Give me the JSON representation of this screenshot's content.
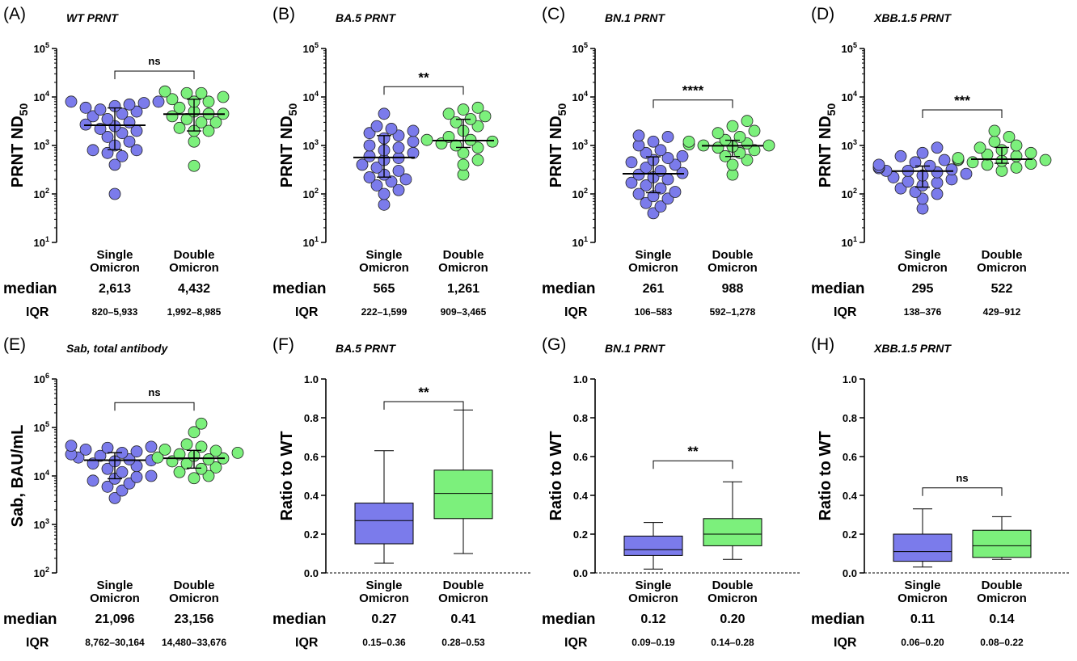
{
  "colors": {
    "single": "#7B7BEB",
    "double": "#7CF07C",
    "axis": "#000000"
  },
  "labels": {
    "median": "median",
    "iqr": "IQR"
  },
  "chart_data": [
    {
      "panel": "(A)",
      "title": "WT PRNT",
      "type": "scatter",
      "scale": "log",
      "ylabel": "PRNT ND",
      "ylabel_sub": "50",
      "ylim_exp": [
        1,
        5
      ],
      "y_ticks": [
        "10^1",
        "10^2",
        "10^3",
        "10^4",
        "10^5"
      ],
      "categories": [
        [
          "Single",
          "Omicron"
        ],
        [
          "Double",
          "Omicron"
        ]
      ],
      "significance": "ns",
      "series": [
        {
          "values": [
            100,
            400,
            600,
            700,
            800,
            800,
            1000,
            1200,
            1500,
            1800,
            2000,
            2200,
            2500,
            2700,
            3000,
            3500,
            4000,
            4500,
            5000,
            5500,
            6000,
            6500,
            7000,
            7500,
            8000,
            8000
          ],
          "median": 2613,
          "q1": 820,
          "q3": 5933
        },
        {
          "values": [
            380,
            1200,
            2000,
            2000,
            2300,
            3000,
            3000,
            3500,
            4000,
            4500,
            4500,
            5000,
            6000,
            8000,
            8000,
            9000,
            10000,
            12000,
            12000,
            13000
          ],
          "median": 4432,
          "q1": 1992,
          "q3": 8985
        }
      ],
      "medians": [
        "2,613",
        "4,432"
      ],
      "iqr": [
        "820–5,933",
        "1,992–8,985"
      ]
    },
    {
      "panel": "(B)",
      "title": "BA.5 PRNT",
      "type": "scatter",
      "scale": "log",
      "ylabel": "PRNT ND",
      "ylabel_sub": "50",
      "ylim_exp": [
        1,
        5
      ],
      "y_ticks": [
        "10^1",
        "10^2",
        "10^3",
        "10^4",
        "10^5"
      ],
      "categories": [
        [
          "Single",
          "Omicron"
        ],
        [
          "Double",
          "Omicron"
        ]
      ],
      "significance": "**",
      "series": [
        {
          "values": [
            60,
            100,
            120,
            150,
            180,
            200,
            220,
            250,
            300,
            350,
            400,
            500,
            550,
            600,
            700,
            800,
            900,
            1000,
            1200,
            1400,
            1600,
            1800,
            2000,
            2200,
            2500,
            4500
          ],
          "median": 565,
          "q1": 222,
          "q3": 1599
        },
        {
          "values": [
            250,
            400,
            500,
            700,
            900,
            1000,
            1100,
            1200,
            1300,
            1300,
            1500,
            2000,
            2500,
            3000,
            3500,
            4000,
            4500,
            5500,
            6000
          ],
          "median": 1261,
          "q1": 909,
          "q3": 3465
        }
      ],
      "medians": [
        "565",
        "1,261"
      ],
      "iqr": [
        "222–1,599",
        "909–3,465"
      ]
    },
    {
      "panel": "(C)",
      "title": "BN.1 PRNT",
      "type": "scatter",
      "scale": "log",
      "ylabel": "PRNT ND",
      "ylabel_sub": "50",
      "ylim_exp": [
        1,
        5
      ],
      "y_ticks": [
        "10^1",
        "10^2",
        "10^3",
        "10^4",
        "10^5"
      ],
      "categories": [
        [
          "Single",
          "Omicron"
        ],
        [
          "Double",
          "Omicron"
        ]
      ],
      "significance": "****",
      "series": [
        {
          "values": [
            40,
            55,
            65,
            80,
            90,
            100,
            110,
            130,
            150,
            170,
            200,
            220,
            250,
            270,
            300,
            350,
            400,
            450,
            500,
            550,
            600,
            700,
            800,
            1000,
            1200,
            1500,
            1600
          ],
          "median": 261,
          "q1": 106,
          "q3": 583
        },
        {
          "values": [
            250,
            400,
            500,
            600,
            700,
            800,
            900,
            950,
            1000,
            1000,
            1050,
            1100,
            1200,
            1300,
            1500,
            1800,
            2000,
            2500,
            3200
          ],
          "median": 988,
          "q1": 592,
          "q3": 1278
        }
      ],
      "medians": [
        "261",
        "988"
      ],
      "iqr": [
        "106–583",
        "592–1,278"
      ]
    },
    {
      "panel": "(D)",
      "title": "XBB.1.5 PRNT",
      "type": "scatter",
      "scale": "log",
      "ylabel": "PRNT ND",
      "ylabel_sub": "50",
      "ylim_exp": [
        1,
        5
      ],
      "y_ticks": [
        "10^1",
        "10^2",
        "10^3",
        "10^4",
        "10^5"
      ],
      "categories": [
        [
          "Single",
          "Omicron"
        ],
        [
          "Double",
          "Omicron"
        ]
      ],
      "significance": "***",
      "series": [
        {
          "values": [
            50,
            80,
            100,
            110,
            130,
            150,
            170,
            180,
            200,
            220,
            240,
            260,
            280,
            300,
            300,
            320,
            340,
            360,
            380,
            400,
            450,
            500,
            600,
            700,
            900
          ],
          "median": 295,
          "q1": 138,
          "q3": 376
        },
        {
          "values": [
            300,
            350,
            400,
            420,
            450,
            480,
            500,
            500,
            520,
            550,
            600,
            650,
            700,
            800,
            900,
            1000,
            1200,
            1500,
            2000
          ],
          "median": 522,
          "q1": 429,
          "q3": 912
        }
      ],
      "medians": [
        "295",
        "522"
      ],
      "iqr": [
        "138–376",
        "429–912"
      ]
    },
    {
      "panel": "(E)",
      "title": "Sab, total antibody",
      "type": "scatter",
      "scale": "log",
      "ylabel": "Sab, BAU/mL",
      "ylabel_sub": "",
      "ylim_exp": [
        2,
        6
      ],
      "y_ticks": [
        "10^2",
        "10^3",
        "10^4",
        "10^5",
        "10^6"
      ],
      "categories": [
        [
          "Single",
          "Omicron"
        ],
        [
          "Double",
          "Omicron"
        ]
      ],
      "significance": "ns",
      "series": [
        {
          "values": [
            3500,
            5000,
            6000,
            7000,
            8000,
            8800,
            9500,
            10000,
            12000,
            14000,
            16000,
            18000,
            20000,
            21000,
            22000,
            24000,
            26000,
            28000,
            30000,
            32000,
            35000,
            38000,
            40000,
            42000
          ],
          "median": 21096,
          "q1": 8762,
          "q3": 30164
        },
        {
          "values": [
            9000,
            10000,
            12000,
            14000,
            15000,
            18000,
            20000,
            22000,
            23000,
            24000,
            26000,
            28000,
            30000,
            33000,
            35000,
            40000,
            45000,
            80000,
            120000
          ],
          "median": 23156,
          "q1": 14480,
          "q3": 33676
        }
      ],
      "medians": [
        "21,096",
        "23,156"
      ],
      "iqr": [
        "8,762–30,164",
        "14,480–33,676"
      ]
    },
    {
      "panel": "(F)",
      "title": "BA.5 PRNT",
      "type": "box",
      "scale": "linear",
      "ylabel": "Ratio to WT",
      "ylabel_sub": "",
      "ylim": [
        0,
        1.0
      ],
      "y_ticks": [
        "0.0",
        "0.2",
        "0.4",
        "0.6",
        "0.8",
        "1.0"
      ],
      "categories": [
        [
          "Single",
          "Omicron"
        ],
        [
          "Double",
          "Omicron"
        ]
      ],
      "significance": "**",
      "series": [
        {
          "min": 0.05,
          "q1": 0.15,
          "median": 0.27,
          "q3": 0.36,
          "max": 0.63
        },
        {
          "min": 0.1,
          "q1": 0.28,
          "median": 0.41,
          "q3": 0.53,
          "max": 0.84
        }
      ],
      "medians": [
        "0.27",
        "0.41"
      ],
      "iqr": [
        "0.15–0.36",
        "0.28–0.53"
      ]
    },
    {
      "panel": "(G)",
      "title": "BN.1 PRNT",
      "type": "box",
      "scale": "linear",
      "ylabel": "Ratio to WT",
      "ylabel_sub": "",
      "ylim": [
        0,
        1.0
      ],
      "y_ticks": [
        "0.0",
        "0.2",
        "0.4",
        "0.6",
        "0.8",
        "1.0"
      ],
      "categories": [
        [
          "Single",
          "Omicron"
        ],
        [
          "Double",
          "Omicron"
        ]
      ],
      "significance": "**",
      "series": [
        {
          "min": 0.02,
          "q1": 0.09,
          "median": 0.12,
          "q3": 0.19,
          "max": 0.26
        },
        {
          "min": 0.07,
          "q1": 0.14,
          "median": 0.2,
          "q3": 0.28,
          "max": 0.47
        }
      ],
      "medians": [
        "0.12",
        "0.20"
      ],
      "iqr": [
        "0.09–0.19",
        "0.14–0.28"
      ]
    },
    {
      "panel": "(H)",
      "title": "XBB.1.5 PRNT",
      "type": "box",
      "scale": "linear",
      "ylabel": "Ratio to WT",
      "ylabel_sub": "",
      "ylim": [
        0,
        1.0
      ],
      "y_ticks": [
        "0.0",
        "0.2",
        "0.4",
        "0.6",
        "0.8",
        "1.0"
      ],
      "categories": [
        [
          "Single",
          "Omicron"
        ],
        [
          "Double",
          "Omicron"
        ]
      ],
      "significance": "ns",
      "series": [
        {
          "min": 0.03,
          "q1": 0.06,
          "median": 0.11,
          "q3": 0.2,
          "max": 0.33
        },
        {
          "min": 0.07,
          "q1": 0.08,
          "median": 0.14,
          "q3": 0.22,
          "max": 0.29
        }
      ],
      "medians": [
        "0.11",
        "0.14"
      ],
      "iqr": [
        "0.06–0.20",
        "0.08–0.22"
      ]
    }
  ]
}
